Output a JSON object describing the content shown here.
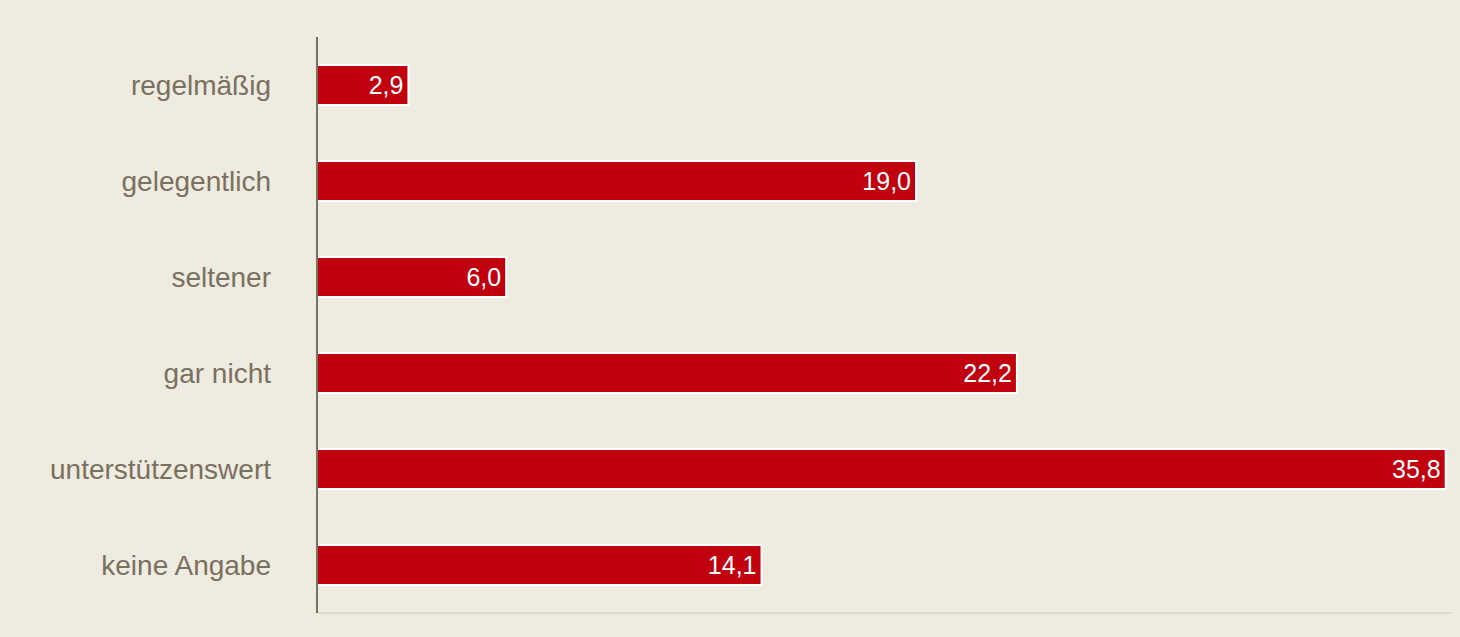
{
  "chart_data": {
    "type": "bar",
    "orientation": "horizontal",
    "categories": [
      "regelmäßig",
      "gelegentlich",
      "seltener",
      "gar nicht",
      "unterstützenswert",
      "keine Angabe"
    ],
    "values": [
      2.9,
      19.0,
      6.0,
      22.2,
      35.8,
      14.1
    ],
    "value_labels": [
      "2,9",
      "19,0",
      "6,0",
      "22,2",
      "35,8",
      "14,1"
    ],
    "color": "#c0000f",
    "xlim": [
      0,
      36
    ],
    "data_labels": true,
    "tick_labels": "y",
    "grid": false
  }
}
